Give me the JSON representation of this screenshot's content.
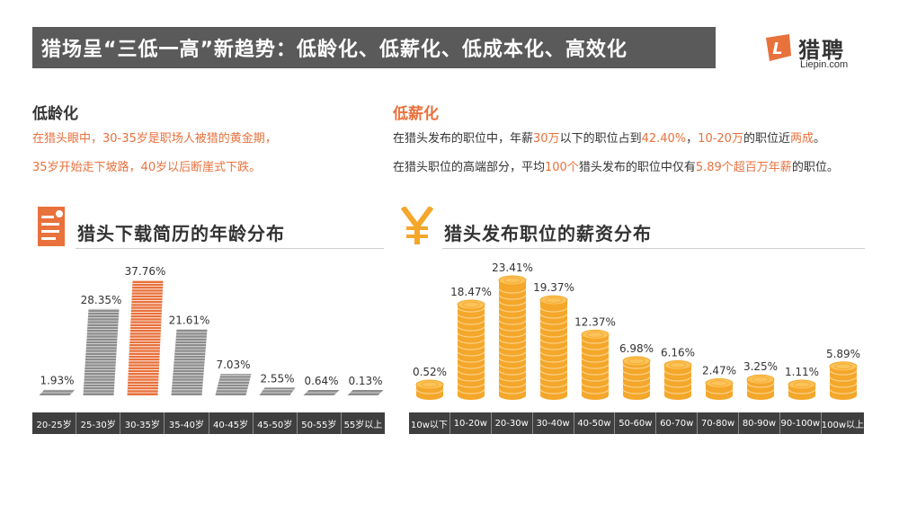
{
  "header": {
    "title": "猎场呈“三低一高”新趋势：低龄化、低薪化、低成本化、高效化"
  },
  "logo": {
    "cn": "猎聘",
    "en": "Liepin.com",
    "mark_letter": "L"
  },
  "colors": {
    "accent": "#e8713c",
    "dark": "#3f3f3f",
    "title_bg": "#5a5a5a",
    "coin": "#f4a72a"
  },
  "left_section": {
    "heading": "低龄化",
    "line1": "在猎头眼中，30-35岁是职场人被猎的黄金期，",
    "line2": "35岁开始走下坡路，40岁以后断崖式下跌。",
    "chart_title": "猎头下载简历的年龄分布",
    "icon": "document-icon"
  },
  "right_section": {
    "heading": "低薪化",
    "l1_a": "在猎头发布的职位中，年薪",
    "l1_b": "30万",
    "l1_c": "以下的职位占到",
    "l1_d": "42.40%",
    "l1_e": "，",
    "l1_f": "10-20万",
    "l1_g": "的职位近",
    "l1_h": "两成",
    "l1_i": "。",
    "l2_a": "在猎头职位的高端部分，平均",
    "l2_b": "100个",
    "l2_c": "猎头发布的职位中仅有",
    "l2_d": "5.89个超百万年薪",
    "l2_e": "的职位。",
    "chart_title": "猎头发布职位的薪资分布",
    "icon": "yen-icon"
  },
  "chart_data": [
    {
      "type": "bar",
      "title": "猎头下载简历的年龄分布",
      "categories": [
        "20-25岁",
        "25-30岁",
        "30-35岁",
        "35-40岁",
        "40-45岁",
        "45-50岁",
        "50-55岁",
        "55岁以上"
      ],
      "values": [
        1.93,
        28.35,
        37.76,
        21.61,
        7.03,
        2.55,
        0.64,
        0.13
      ],
      "labels": [
        "1.93%",
        "28.35%",
        "37.76%",
        "21.61%",
        "7.03%",
        "2.55%",
        "0.64%",
        "0.13%"
      ],
      "unit": "%",
      "highlight_index": 2
    },
    {
      "type": "bar",
      "title": "猎头发布职位的薪资分布",
      "categories": [
        "10w以下",
        "10-20w",
        "20-30w",
        "30-40w",
        "40-50w",
        "50-60w",
        "60-70w",
        "70-80w",
        "80-90w",
        "90-100w",
        "100w以上"
      ],
      "values": [
        0.52,
        18.47,
        23.41,
        19.37,
        12.37,
        6.98,
        6.16,
        2.47,
        3.25,
        1.11,
        5.89
      ],
      "labels": [
        "0.52%",
        "18.47%",
        "23.41%",
        "19.37%",
        "12.37%",
        "6.98%",
        "6.16%",
        "2.47%",
        "3.25%",
        "1.11%",
        "5.89%"
      ],
      "unit": "%"
    }
  ]
}
